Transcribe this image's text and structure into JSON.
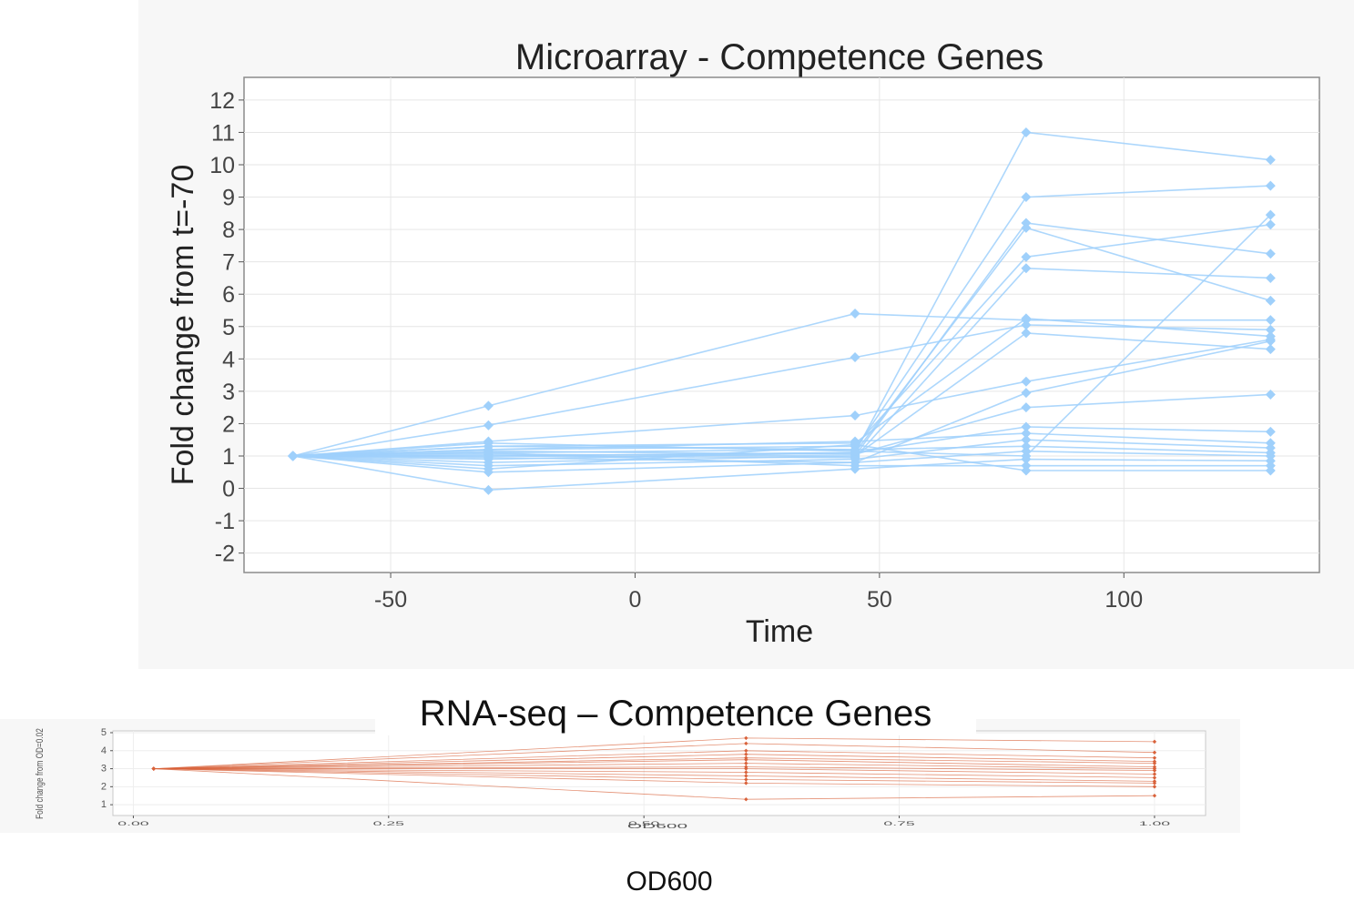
{
  "chart_data": [
    {
      "type": "line",
      "title": "Microarray - Competence Genes",
      "xlabel": "Time",
      "ylabel": "Fold change from t=-70",
      "xlim": [
        -80,
        140
      ],
      "ylim": [
        -2.6,
        12.7
      ],
      "xticks": [
        -50,
        0,
        50,
        100
      ],
      "yticks": [
        -2,
        -1,
        0,
        1,
        2,
        3,
        4,
        5,
        6,
        7,
        8,
        9,
        10,
        11,
        12
      ],
      "grid": true,
      "color": "#9fd0fb",
      "x": [
        -70,
        -30,
        45,
        80,
        130
      ],
      "series": [
        {
          "values": [
            1,
            1.0,
            1.1,
            11.0,
            10.15
          ]
        },
        {
          "values": [
            1,
            1.1,
            1.2,
            9.0,
            9.35
          ]
        },
        {
          "values": [
            1,
            1.05,
            1.0,
            8.2,
            7.25
          ]
        },
        {
          "values": [
            1,
            0.9,
            1.1,
            8.05,
            5.8
          ]
        },
        {
          "values": [
            1,
            1.2,
            1.3,
            7.15,
            8.15
          ]
        },
        {
          "values": [
            1,
            1.0,
            0.95,
            6.8,
            6.5
          ]
        },
        {
          "values": [
            1,
            2.55,
            5.4,
            5.2,
            5.2
          ]
        },
        {
          "values": [
            1,
            1.95,
            4.05,
            5.05,
            4.9
          ]
        },
        {
          "values": [
            1,
            1.3,
            1.4,
            5.25,
            4.7
          ]
        },
        {
          "values": [
            1,
            0.8,
            1.0,
            4.8,
            4.3
          ]
        },
        {
          "values": [
            1,
            1.45,
            2.25,
            3.3,
            4.6
          ]
        },
        {
          "values": [
            1,
            0.5,
            0.8,
            2.95,
            4.55
          ]
        },
        {
          "values": [
            1,
            1.15,
            1.05,
            2.5,
            2.9
          ]
        },
        {
          "values": [
            1,
            1.0,
            1.1,
            1.9,
            1.75
          ]
        },
        {
          "values": [
            1,
            1.2,
            1.45,
            1.7,
            1.4
          ]
        },
        {
          "values": [
            1,
            0.7,
            0.9,
            1.5,
            1.25
          ]
        },
        {
          "values": [
            1,
            1.3,
            1.2,
            1.3,
            1.1
          ]
        },
        {
          "values": [
            1,
            0.95,
            0.8,
            1.15,
            1.0
          ]
        },
        {
          "values": [
            1,
            -0.05,
            0.6,
            0.9,
            0.85
          ]
        },
        {
          "values": [
            1,
            1.1,
            0.7,
            0.7,
            0.7
          ]
        },
        {
          "values": [
            1,
            0.6,
            1.35,
            0.55,
            0.55
          ]
        },
        {
          "values": [
            1,
            1.4,
            1.15,
            1.0,
            8.45
          ]
        }
      ]
    },
    {
      "type": "line",
      "xlabel": "OD600",
      "ylabel": "Fold change from OD=0.02",
      "xlim": [
        -0.02,
        1.05
      ],
      "ylim": [
        0.4,
        5.1
      ],
      "xticks": [
        0.0,
        0.25,
        0.5,
        0.75,
        1.0
      ],
      "xtick_labels": [
        "0.00",
        "0.25",
        "0.50",
        "0.75",
        "1.00"
      ],
      "yticks": [
        1,
        2,
        3,
        4,
        5
      ],
      "color": "#d9623b",
      "x": [
        0.02,
        0.6,
        1.0
      ],
      "series": [
        {
          "values": [
            3,
            4.7,
            4.5
          ]
        },
        {
          "values": [
            3,
            4.4,
            3.9
          ]
        },
        {
          "values": [
            3,
            4.0,
            3.6
          ]
        },
        {
          "values": [
            3,
            3.8,
            3.4
          ]
        },
        {
          "values": [
            3,
            3.6,
            3.3
          ]
        },
        {
          "values": [
            3,
            3.5,
            3.1
          ]
        },
        {
          "values": [
            3,
            3.3,
            3.0
          ]
        },
        {
          "values": [
            3,
            3.1,
            2.9
          ]
        },
        {
          "values": [
            3,
            3.0,
            2.7
          ]
        },
        {
          "values": [
            3,
            2.8,
            2.5
          ]
        },
        {
          "values": [
            3,
            2.6,
            2.3
          ]
        },
        {
          "values": [
            3,
            2.4,
            2.2
          ]
        },
        {
          "values": [
            3,
            2.2,
            2.0
          ]
        },
        {
          "values": [
            3,
            1.3,
            1.5
          ]
        }
      ]
    }
  ],
  "labels": {
    "rna_title": "RNA-seq – Competence Genes",
    "od_label": "OD600"
  }
}
